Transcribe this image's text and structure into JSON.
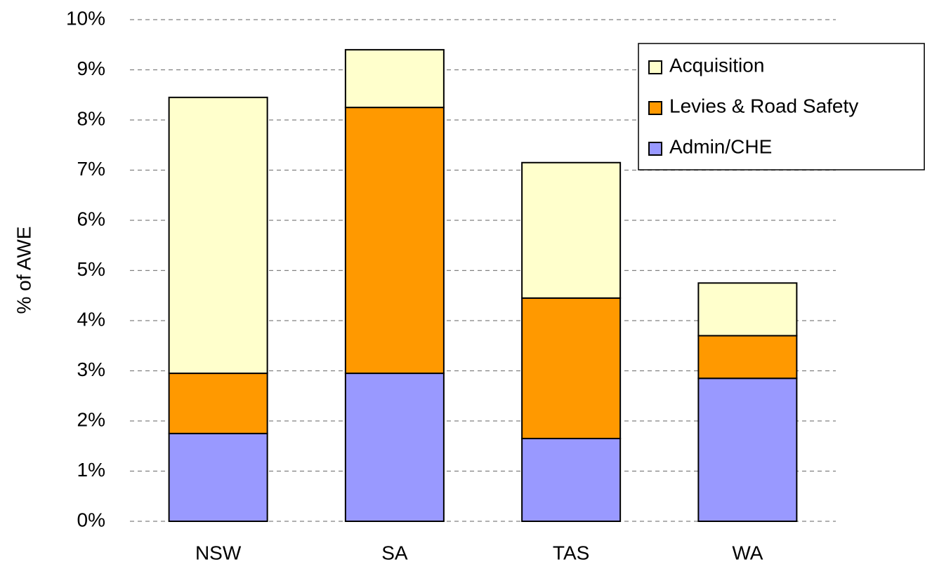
{
  "chart_data": {
    "type": "stacked_bar",
    "y_label": "% of AWE",
    "categories": [
      "NSW",
      "SA",
      "TAS",
      "WA"
    ],
    "series": [
      {
        "name": "Admin/CHE",
        "color": "#9999ff",
        "values": [
          1.75,
          2.95,
          1.65,
          2.85
        ]
      },
      {
        "name": "Levies & Road Safety",
        "color": "#ff9900",
        "values": [
          1.2,
          5.3,
          2.8,
          0.85
        ]
      },
      {
        "name": "Acquisition",
        "color": "#ffffcc",
        "values": [
          5.5,
          1.15,
          2.7,
          1.05
        ]
      }
    ],
    "ylim": [
      0,
      10
    ],
    "yticks": [
      {
        "value": 0,
        "label": "0%"
      },
      {
        "value": 1,
        "label": "1%"
      },
      {
        "value": 2,
        "label": "2%"
      },
      {
        "value": 3,
        "label": "3%"
      },
      {
        "value": 4,
        "label": "4%"
      },
      {
        "value": 5,
        "label": "5%"
      },
      {
        "value": 6,
        "label": "6%"
      },
      {
        "value": 7,
        "label": "7%"
      },
      {
        "value": 8,
        "label": "8%"
      },
      {
        "value": 9,
        "label": "9%"
      },
      {
        "value": 10,
        "label": "10%"
      }
    ],
    "grid": true,
    "legend": "upper right"
  }
}
